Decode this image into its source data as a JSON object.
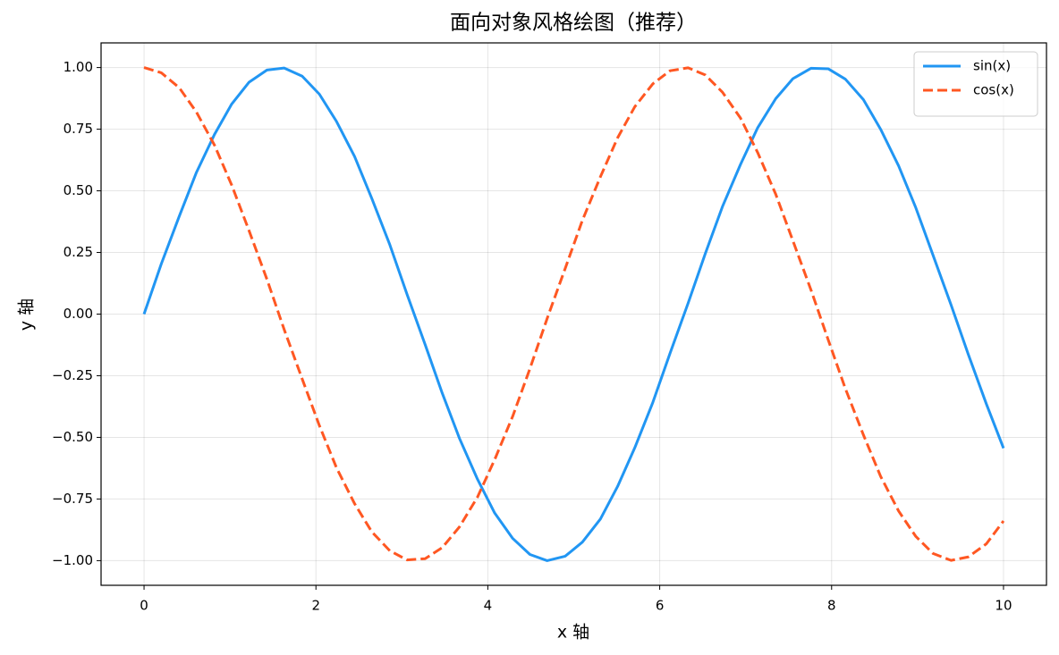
{
  "chart_data": {
    "type": "line",
    "title": "面向对象风格绘图（推荐）",
    "x_label": "x 轴",
    "y_label": "y 轴",
    "x": [
      0,
      0.2,
      0.41,
      0.61,
      0.82,
      1.02,
      1.22,
      1.43,
      1.63,
      1.84,
      2.04,
      2.24,
      2.45,
      2.65,
      2.86,
      3.06,
      3.27,
      3.47,
      3.67,
      3.88,
      4.08,
      4.29,
      4.49,
      4.69,
      4.9,
      5.1,
      5.31,
      5.51,
      5.71,
      5.92,
      6.12,
      6.33,
      6.53,
      6.73,
      6.94,
      7.14,
      7.35,
      7.55,
      7.76,
      7.96,
      8.16,
      8.37,
      8.57,
      8.78,
      8.98,
      9.18,
      9.39,
      9.59,
      9.8,
      10
    ],
    "series": [
      {
        "name": "sin(x)",
        "color": "#2196f3",
        "linestyle": "solid",
        "values": [
          0,
          0.203,
          0.397,
          0.575,
          0.729,
          0.852,
          0.94,
          0.99,
          0.998,
          0.965,
          0.892,
          0.781,
          0.639,
          0.469,
          0.281,
          0.08,
          -0.123,
          -0.321,
          -0.504,
          -0.67,
          -0.807,
          -0.91,
          -0.975,
          -1.0,
          -0.982,
          -0.925,
          -0.831,
          -0.699,
          -0.542,
          -0.358,
          -0.159,
          0.044,
          0.245,
          0.436,
          0.607,
          0.756,
          0.874,
          0.955,
          0.997,
          0.995,
          0.953,
          0.87,
          0.75,
          0.601,
          0.431,
          0.239,
          0.037,
          -0.163,
          -0.364,
          -0.544
        ]
      },
      {
        "name": "cos(x)",
        "color": "#ff5722",
        "linestyle": "dashed",
        "values": [
          1,
          0.979,
          0.918,
          0.819,
          0.685,
          0.523,
          0.34,
          0.141,
          -0.062,
          -0.263,
          -0.452,
          -0.624,
          -0.769,
          -0.883,
          -0.96,
          -0.997,
          -0.992,
          -0.947,
          -0.863,
          -0.742,
          -0.59,
          -0.414,
          -0.221,
          -0.018,
          0.185,
          0.38,
          0.557,
          0.715,
          0.841,
          0.934,
          0.987,
          0.999,
          0.97,
          0.9,
          0.795,
          0.655,
          0.486,
          0.297,
          0.098,
          -0.104,
          -0.302,
          -0.49,
          -0.658,
          -0.799,
          -0.902,
          -0.971,
          -0.999,
          -0.985,
          -0.932,
          -0.839
        ]
      }
    ],
    "xlim": [
      -0.5,
      10.5
    ],
    "xticks": [
      0,
      2,
      4,
      6,
      8,
      10
    ],
    "ylim": [
      -1.1,
      1.1
    ],
    "yticks": [
      {
        "value": -1,
        "label": "−1.00"
      },
      {
        "value": -0.75,
        "label": "−0.75"
      },
      {
        "value": -0.5,
        "label": "−0.50"
      },
      {
        "value": -0.25,
        "label": "−0.25"
      },
      {
        "value": 0,
        "label": "0.00"
      },
      {
        "value": 0.25,
        "label": "0.25"
      },
      {
        "value": 0.5,
        "label": "0.50"
      },
      {
        "value": 0.75,
        "label": "0.75"
      },
      {
        "value": 1,
        "label": "1.00"
      }
    ],
    "grid": true,
    "legend": "upper-right"
  }
}
